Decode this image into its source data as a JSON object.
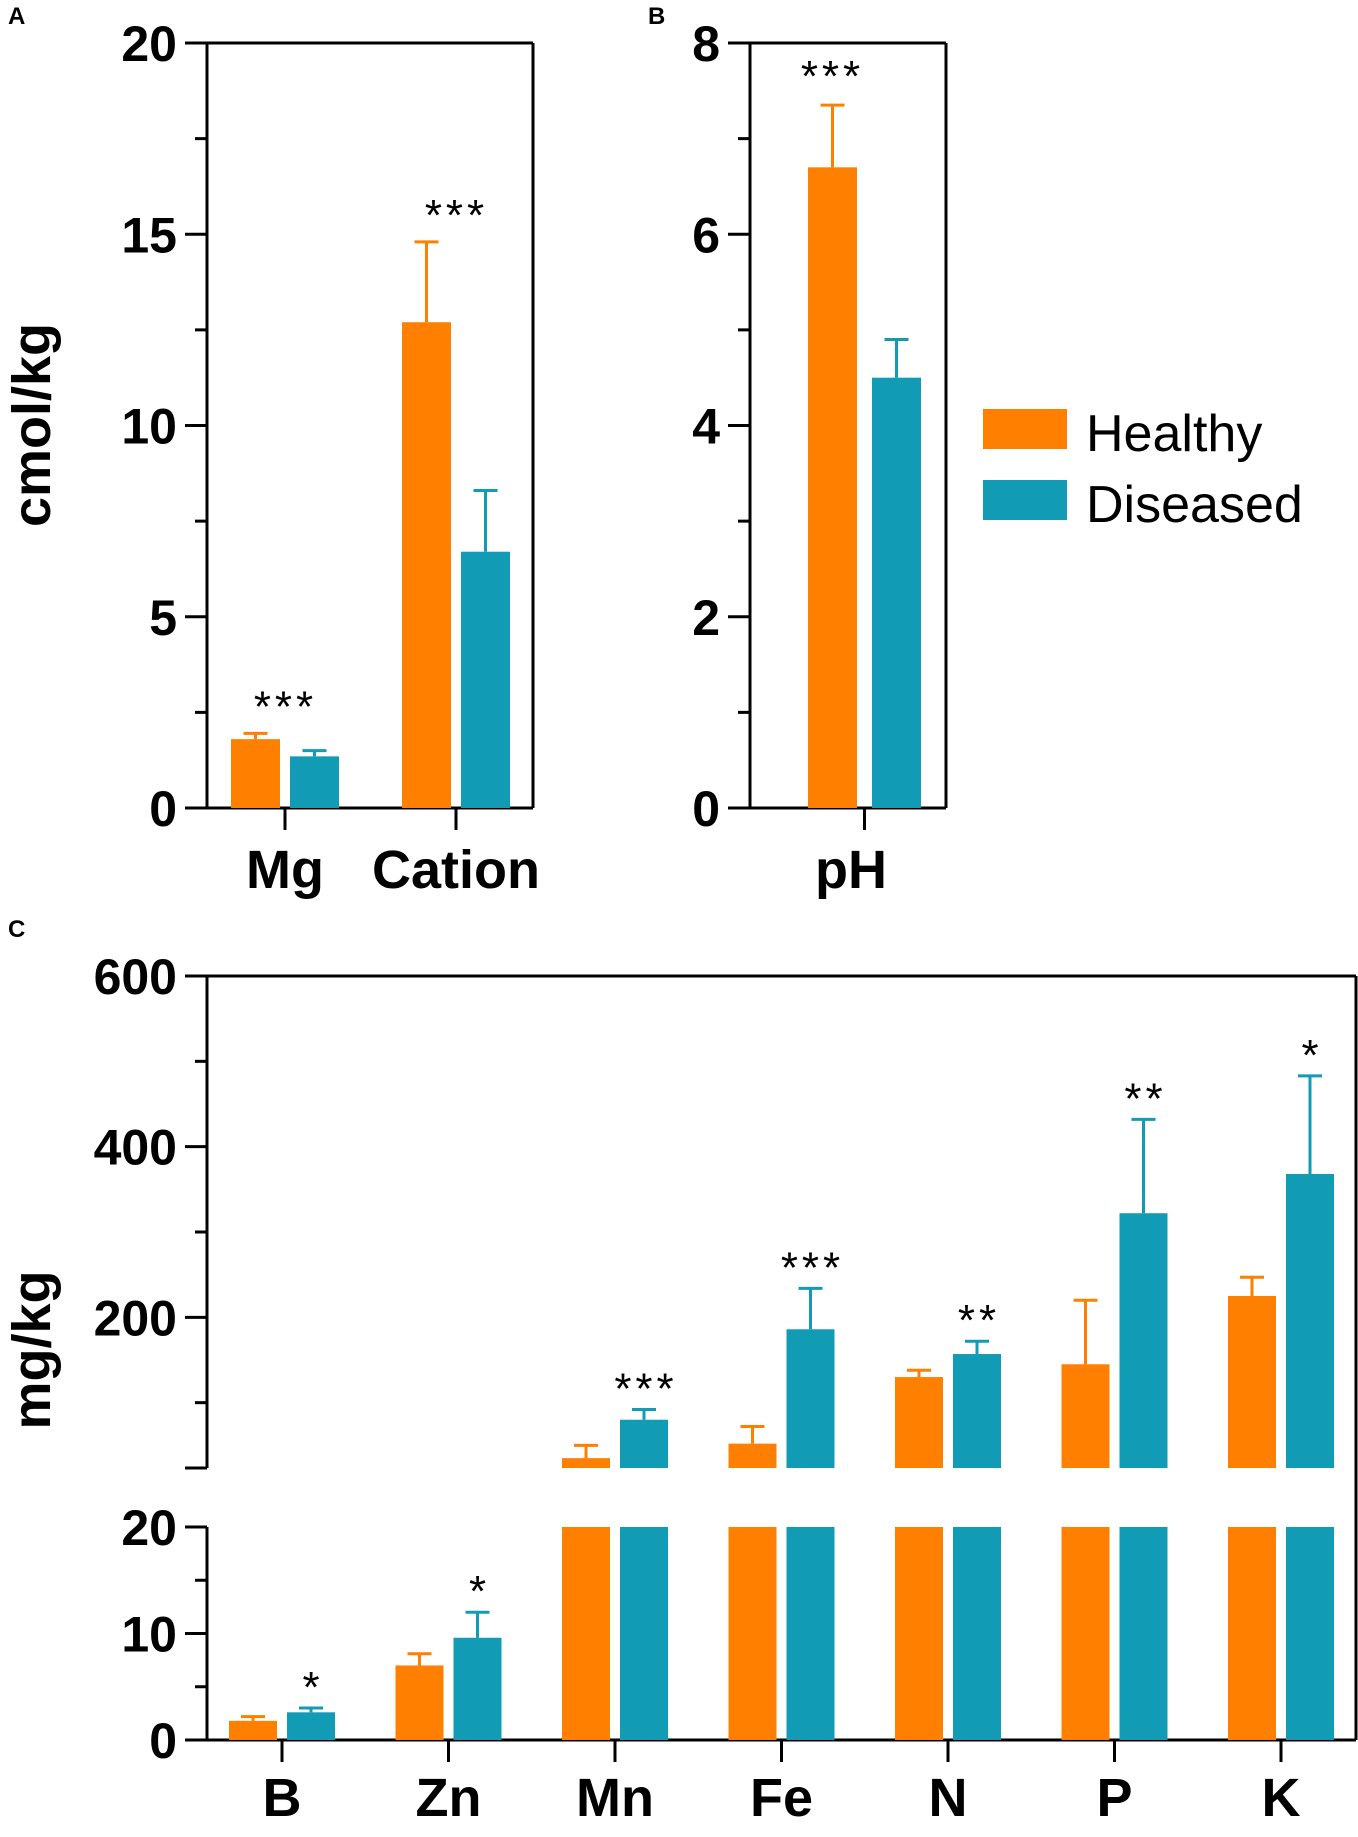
{
  "colors": {
    "healthy": "#FF8000",
    "diseased": "#129BB5",
    "axis": "#000000"
  },
  "legend": [
    {
      "name": "Healthy",
      "color": "#FF8000"
    },
    {
      "name": "Diseased",
      "color": "#129BB5"
    }
  ],
  "chart_data": [
    {
      "panel": "A",
      "type": "bar",
      "ylabel": "cmol/kg",
      "ylim": [
        0,
        20
      ],
      "yticks": [
        0,
        5,
        10,
        15,
        20
      ],
      "ytick_labels": [
        "0",
        "5",
        "10",
        "15",
        "20"
      ],
      "categories": [
        "Mg",
        "Cation"
      ],
      "series": [
        {
          "name": "Healthy",
          "values": [
            1.8,
            12.7
          ],
          "errors": [
            0.15,
            2.1
          ]
        },
        {
          "name": "Diseased",
          "values": [
            1.35,
            6.7
          ],
          "errors": [
            0.15,
            1.6
          ]
        }
      ],
      "significance": [
        "***",
        "***"
      ]
    },
    {
      "panel": "B",
      "type": "bar",
      "ylabel": "",
      "ylim": [
        0,
        8
      ],
      "yticks": [
        0,
        2,
        4,
        6,
        8
      ],
      "ytick_labels": [
        "0",
        "2",
        "4",
        "6",
        "8"
      ],
      "categories": [
        "pH"
      ],
      "series": [
        {
          "name": "Healthy",
          "values": [
            6.7
          ],
          "errors": [
            0.65
          ]
        },
        {
          "name": "Diseased",
          "values": [
            4.5
          ],
          "errors": [
            0.4
          ]
        }
      ],
      "significance": [
        "***"
      ]
    },
    {
      "panel": "C",
      "type": "bar",
      "ylabel": "mg/kg",
      "axis_break": true,
      "lower_ylim": [
        0,
        20
      ],
      "lower_yticks": [
        0,
        10,
        20
      ],
      "lower_ytick_labels": [
        "0",
        "10",
        "20"
      ],
      "upper_ylim": [
        20,
        600
      ],
      "upper_yticks": [
        200,
        400,
        600
      ],
      "upper_ytick_labels": [
        "200",
        "400",
        "600"
      ],
      "categories": [
        "B",
        "Zn",
        "Mn",
        "Fe",
        "N",
        "P",
        "K"
      ],
      "series": [
        {
          "name": "Healthy",
          "values": [
            1.8,
            7.0,
            35,
            52,
            130,
            145,
            225
          ],
          "errors": [
            0.4,
            1.1,
            15,
            20,
            8,
            75,
            22
          ]
        },
        {
          "name": "Diseased",
          "values": [
            2.6,
            9.6,
            80,
            186,
            157,
            322,
            368
          ],
          "errors": [
            0.4,
            2.4,
            12,
            48,
            15,
            110,
            115
          ]
        }
      ],
      "significance": [
        "*",
        "*",
        "***",
        "***",
        "**",
        "**",
        "*"
      ]
    }
  ]
}
